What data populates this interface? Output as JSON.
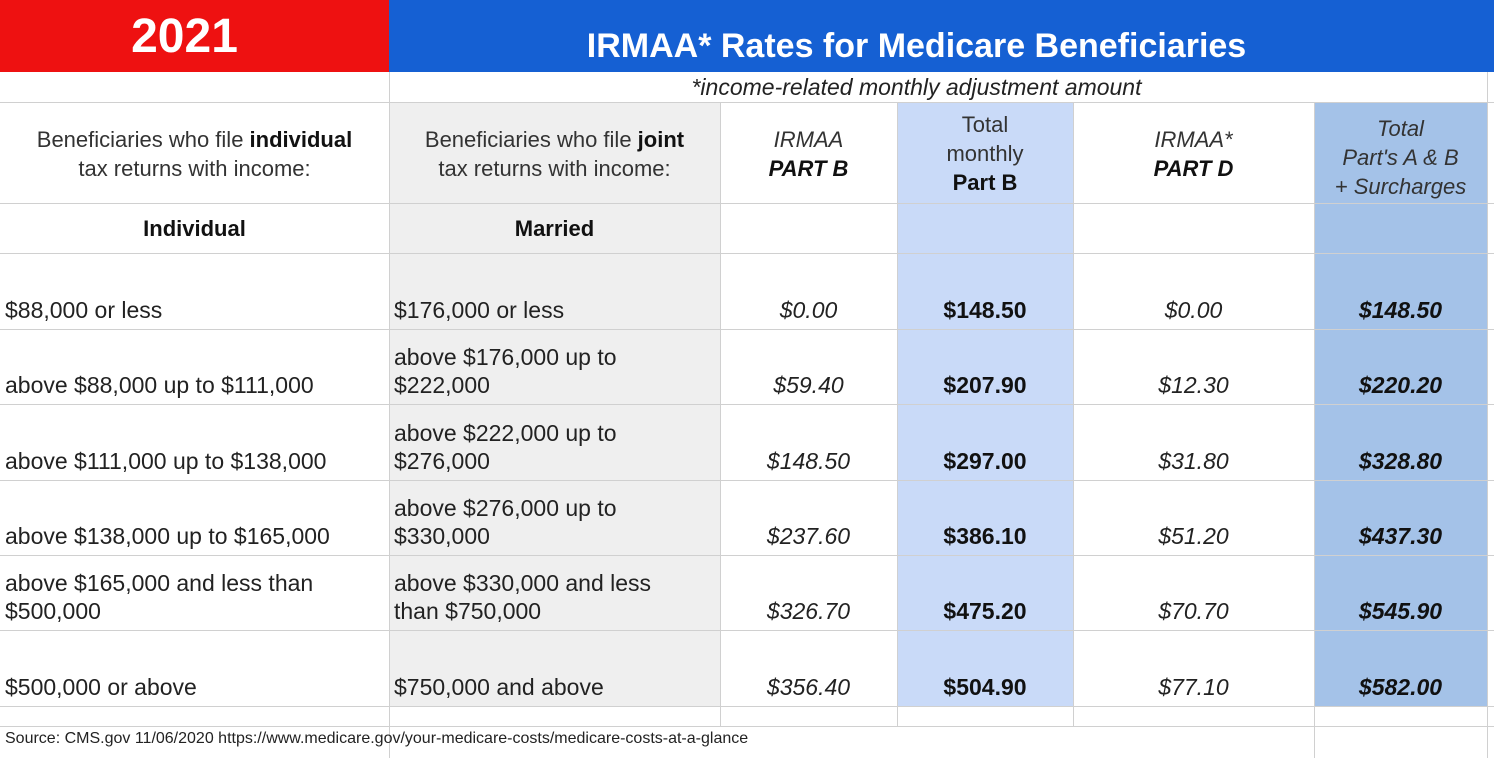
{
  "header": {
    "year": "2021",
    "title": "IRMAA* Rates for Medicare Beneficiaries",
    "subtitle": "*income-related monthly adjustment amount"
  },
  "columns": {
    "individual_pre": "Beneficiaries who file ",
    "individual_bold": "individual",
    "individual_post": "tax returns with income:",
    "joint_pre": "Beneficiaries who file ",
    "joint_bold": "joint",
    "joint_post": "tax returns with income:",
    "irmaa_b_line1": "IRMAA",
    "irmaa_b_line2": "PART B",
    "total_b_line1": "Total",
    "total_b_line2": "monthly",
    "total_b_line3": "Part B",
    "irmaa_d_line1": "IRMAA*",
    "irmaa_d_line2": "PART D",
    "total_ab_line1": "Total",
    "total_ab_line2": "Part's A & B",
    "total_ab_line3": "+ Surcharges"
  },
  "subheaders": {
    "individual": "Individual",
    "married": "Married"
  },
  "rows": [
    {
      "individual": [
        "$88,000 or less"
      ],
      "married": [
        "$176,000 or less"
      ],
      "irmaa_b": "$0.00",
      "total_b": "$148.50",
      "irmaa_d": "$0.00",
      "total_ab": "$148.50"
    },
    {
      "individual": [
        "above $88,000 up to $111,000"
      ],
      "married": [
        "above $176,000 up to",
        "$222,000"
      ],
      "irmaa_b": "$59.40",
      "total_b": "$207.90",
      "irmaa_d": "$12.30",
      "total_ab": "$220.20"
    },
    {
      "individual": [
        "above $111,000 up to $138,000"
      ],
      "married": [
        "above $222,000 up to",
        "$276,000"
      ],
      "irmaa_b": "$148.50",
      "total_b": "$297.00",
      "irmaa_d": "$31.80",
      "total_ab": "$328.80"
    },
    {
      "individual": [
        "above $138,000 up to $165,000"
      ],
      "married": [
        "above $276,000 up to",
        "$330,000"
      ],
      "irmaa_b": "$237.60",
      "total_b": "$386.10",
      "irmaa_d": "$51.20",
      "total_ab": "$437.30"
    },
    {
      "individual": [
        "above $165,000 and less than",
        "$500,000"
      ],
      "married": [
        "above $330,000 and less",
        "than $750,000"
      ],
      "irmaa_b": "$326.70",
      "total_b": "$475.20",
      "irmaa_d": "$70.70",
      "total_ab": "$545.90"
    },
    {
      "individual": [
        "$500,000 or above"
      ],
      "married": [
        "$750,000 and above"
      ],
      "irmaa_b": "$356.40",
      "total_b": "$504.90",
      "irmaa_d": "$77.10",
      "total_ab": "$582.00"
    }
  ],
  "footer": {
    "source": "Source: CMS.gov  11/06/2020 https://www.medicare.gov/your-medicare-costs/medicare-costs-at-a-glance"
  }
}
